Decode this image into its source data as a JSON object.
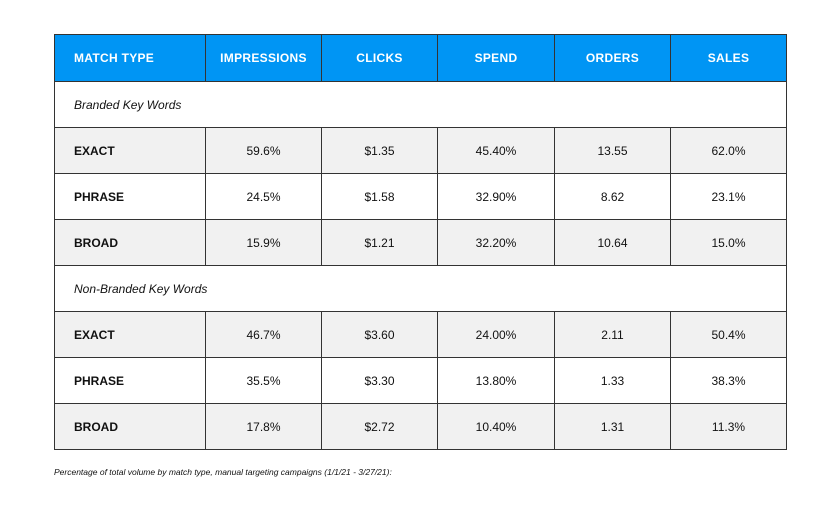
{
  "columns": [
    "MATCH TYPE",
    "IMPRESSIONS",
    "CLICKS",
    "SPEND",
    "ORDERS",
    "SALES"
  ],
  "groups": [
    {
      "title": "Branded Key Words",
      "rows": [
        {
          "type": "EXACT",
          "impressions": "59.6%",
          "clicks": "$1.35",
          "spend": "45.40%",
          "orders": "13.55",
          "sales": "62.0%"
        },
        {
          "type": "PHRASE",
          "impressions": "24.5%",
          "clicks": "$1.58",
          "spend": "32.90%",
          "orders": "8.62",
          "sales": "23.1%"
        },
        {
          "type": "BROAD",
          "impressions": "15.9%",
          "clicks": "$1.21",
          "spend": "32.20%",
          "orders": "10.64",
          "sales": "15.0%"
        }
      ]
    },
    {
      "title": "Non-Branded Key Words",
      "rows": [
        {
          "type": "EXACT",
          "impressions": "46.7%",
          "clicks": "$3.60",
          "spend": "24.00%",
          "orders": "2.11",
          "sales": "50.4%"
        },
        {
          "type": "PHRASE",
          "impressions": "35.5%",
          "clicks": "$3.30",
          "spend": "13.80%",
          "orders": "1.33",
          "sales": "38.3%"
        },
        {
          "type": "BROAD",
          "impressions": "17.8%",
          "clicks": "$2.72",
          "spend": "10.40%",
          "orders": "1.31",
          "sales": "11.3%"
        }
      ]
    }
  ],
  "footnote": "Percentage of total volume by match type, manual targeting campaigns (1/1/21 - 3/27/21):",
  "colors": {
    "header_bg": "#0095f4",
    "alt_row": "#f1f1f1"
  }
}
